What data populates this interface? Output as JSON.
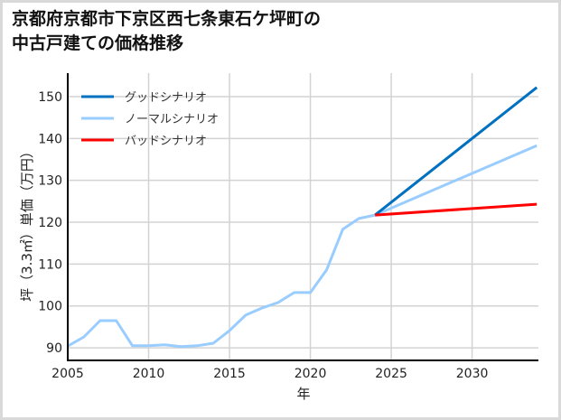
{
  "chart_data": {
    "type": "line",
    "title": "京都府京都市下京区西七条東石ケ坪町の\n中古戸建ての価格推移",
    "xlabel": "年",
    "ylabel": "坪（3.3㎡）単価（万円）",
    "xlim": [
      2005,
      2034.1
    ],
    "ylim": [
      87,
      155.6
    ],
    "xticks": [
      2005,
      2010,
      2015,
      2020,
      2025,
      2030
    ],
    "yticks": [
      90,
      100,
      110,
      120,
      130,
      140,
      150
    ],
    "grid": true,
    "legend_position": "upper left",
    "series": [
      {
        "name": "グッドシナリオ",
        "color": "#0070c0",
        "x": [
          2024,
          2034
        ],
        "values": [
          121.7,
          152.2
        ]
      },
      {
        "name": "ノーマルシナリオ",
        "color": "#99ccff",
        "x": [
          2005,
          2006,
          2007,
          2008,
          2009,
          2010,
          2011,
          2012,
          2013,
          2014,
          2015,
          2016,
          2017,
          2018,
          2019,
          2020,
          2021,
          2022,
          2023,
          2024,
          2034
        ],
        "values": [
          90.4,
          92.6,
          96.5,
          96.5,
          90.5,
          90.5,
          90.7,
          90.3,
          90.5,
          91.1,
          94.1,
          97.8,
          99.5,
          100.8,
          103.2,
          103.2,
          108.6,
          118.3,
          120.9,
          121.7,
          138.3
        ]
      },
      {
        "name": "バッドシナリオ",
        "color": "#ff0000",
        "x": [
          2024,
          2034
        ],
        "values": [
          121.7,
          124.3
        ]
      }
    ]
  },
  "colors": {
    "frame": "#d9d9d9",
    "grid": "#d3d3d3",
    "axis": "#000000"
  }
}
